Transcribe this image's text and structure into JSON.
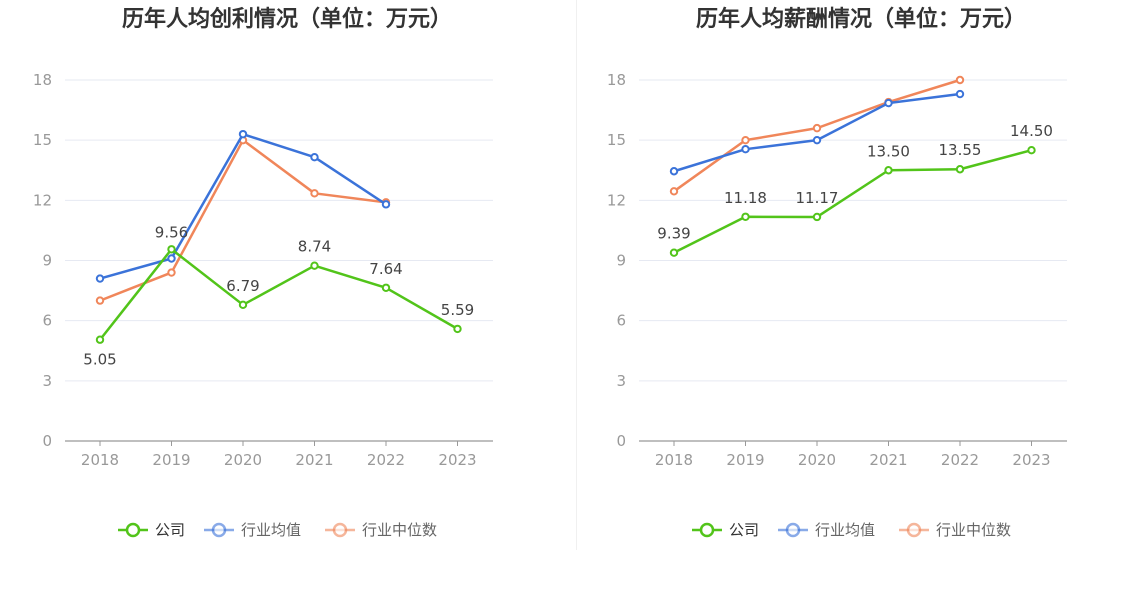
{
  "chart_data": [
    {
      "type": "line",
      "title": "历年人均创利情况（单位：万元）",
      "categories": [
        "2018",
        "2019",
        "2020",
        "2021",
        "2022",
        "2023"
      ],
      "ylim": [
        0,
        18
      ],
      "yticks": [
        "0",
        "3",
        "6",
        "9",
        "12",
        "15",
        "18"
      ],
      "grid": true,
      "legend_position": "bottom",
      "series": [
        {
          "name": "公司",
          "color": "#52c41a",
          "values": [
            5.05,
            9.56,
            6.79,
            8.74,
            7.64,
            5.59
          ],
          "labels": [
            "5.05",
            "9.56",
            "6.79",
            "8.74",
            "7.64",
            "5.59"
          ]
        },
        {
          "name": "行业均值",
          "color": "#3b73d9",
          "values": [
            8.1,
            9.1,
            15.3,
            14.15,
            11.8,
            null
          ],
          "labels": null
        },
        {
          "name": "行业中位数",
          "color": "#f0865a",
          "values": [
            7.0,
            8.4,
            15.0,
            12.35,
            11.9,
            null
          ],
          "labels": null
        }
      ]
    },
    {
      "type": "line",
      "title": "历年人均薪酬情况（单位：万元）",
      "categories": [
        "2018",
        "2019",
        "2020",
        "2021",
        "2022",
        "2023"
      ],
      "ylim": [
        0,
        18
      ],
      "yticks": [
        "0",
        "3",
        "6",
        "9",
        "12",
        "15",
        "18"
      ],
      "grid": true,
      "legend_position": "bottom",
      "series": [
        {
          "name": "公司",
          "color": "#52c41a",
          "values": [
            9.39,
            11.18,
            11.17,
            13.5,
            13.55,
            14.5
          ],
          "labels": [
            "9.39",
            "11.18",
            "11.17",
            "13.50",
            "13.55",
            "14.50"
          ]
        },
        {
          "name": "行业均值",
          "color": "#3b73d9",
          "values": [
            13.45,
            14.55,
            15.0,
            16.85,
            17.3,
            null
          ],
          "labels": null
        },
        {
          "name": "行业中位数",
          "color": "#f0865a",
          "values": [
            12.45,
            15.0,
            15.6,
            16.9,
            18.0,
            null
          ],
          "labels": null
        }
      ]
    }
  ]
}
